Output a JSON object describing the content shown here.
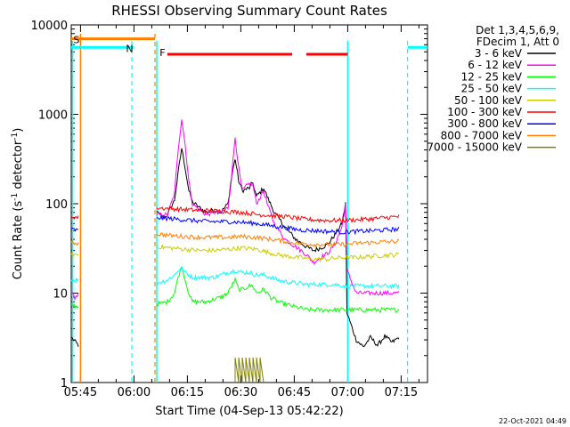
{
  "chart_data": {
    "type": "line",
    "title": "RHESSI Observing Summary Count Rates",
    "xlabel": "Start Time (04-Sep-13 05:42:22)",
    "ylabel_main": "Count Rate (s",
    "ylabel_sup1": "-1",
    "ylabel_mid": " detector",
    "ylabel_sup2": "-1",
    "ylabel_end": ")",
    "yscale": "log",
    "ylim": [
      1,
      10000
    ],
    "xlim_minutes": [
      0,
      100
    ],
    "x_ticks": [
      {
        "label": "05:45",
        "m": 2.6
      },
      {
        "label": "06:00",
        "m": 17.6
      },
      {
        "label": "06:15",
        "m": 32.6
      },
      {
        "label": "06:30",
        "m": 47.6
      },
      {
        "label": "06:45",
        "m": 62.6
      },
      {
        "label": "07:00",
        "m": 77.6
      },
      {
        "label": "07:15",
        "m": 92.6
      }
    ],
    "y_ticks": [
      {
        "label": "1",
        "v": 1
      },
      {
        "label": "10",
        "v": 10
      },
      {
        "label": "100",
        "v": 100
      },
      {
        "label": "1000",
        "v": 1000
      },
      {
        "label": "10000",
        "v": 10000
      }
    ],
    "legend_header": [
      "Det 1,3,4,5,6,9,",
      "FDecim 1, Att 0"
    ],
    "series": [
      {
        "name": "3 - 6 keV",
        "color": "#000000",
        "points": [
          [
            0,
            3.2
          ],
          [
            2,
            2.6
          ],
          [
            24,
            80
          ],
          [
            26,
            70
          ],
          [
            27,
            75
          ],
          [
            29,
            110
          ],
          [
            30,
            220
          ],
          [
            31,
            420
          ],
          [
            32,
            250
          ],
          [
            33,
            140
          ],
          [
            34,
            105
          ],
          [
            36,
            90
          ],
          [
            38,
            80
          ],
          [
            40,
            85
          ],
          [
            42,
            80
          ],
          [
            44,
            100
          ],
          [
            45,
            200
          ],
          [
            46,
            320
          ],
          [
            47,
            180
          ],
          [
            48,
            140
          ],
          [
            50,
            150
          ],
          [
            51,
            170
          ],
          [
            52,
            120
          ],
          [
            54,
            150
          ],
          [
            55,
            120
          ],
          [
            57,
            80
          ],
          [
            60,
            55
          ],
          [
            63,
            40
          ],
          [
            66,
            33
          ],
          [
            68,
            30
          ],
          [
            70,
            32
          ],
          [
            72,
            35
          ],
          [
            74,
            45
          ],
          [
            76,
            60
          ],
          [
            77,
            100
          ],
          [
            77.4,
            6
          ],
          [
            80,
            3
          ],
          [
            82,
            2.5
          ],
          [
            84,
            3.2
          ],
          [
            86,
            2.6
          ],
          [
            88,
            3.3
          ],
          [
            90,
            2.8
          ],
          [
            92,
            3.2
          ]
        ]
      },
      {
        "name": "6 - 12 keV",
        "color": "#ff00ff",
        "points": [
          [
            0,
            10
          ],
          [
            1,
            9
          ],
          [
            2,
            9.5
          ],
          [
            24,
            75
          ],
          [
            27,
            75
          ],
          [
            29,
            130
          ],
          [
            30,
            400
          ],
          [
            31,
            900
          ],
          [
            32,
            450
          ],
          [
            33,
            180
          ],
          [
            34,
            100
          ],
          [
            36,
            85
          ],
          [
            38,
            75
          ],
          [
            40,
            80
          ],
          [
            42,
            80
          ],
          [
            44,
            90
          ],
          [
            45,
            200
          ],
          [
            46,
            560
          ],
          [
            47,
            250
          ],
          [
            48,
            140
          ],
          [
            50,
            170
          ],
          [
            51,
            160
          ],
          [
            52,
            100
          ],
          [
            54,
            140
          ],
          [
            55,
            100
          ],
          [
            57,
            60
          ],
          [
            60,
            40
          ],
          [
            63,
            33
          ],
          [
            66,
            27
          ],
          [
            68,
            22
          ],
          [
            70,
            25
          ],
          [
            72,
            28
          ],
          [
            74,
            35
          ],
          [
            76,
            55
          ],
          [
            77,
            100
          ],
          [
            77.4,
            18
          ],
          [
            80,
            10
          ],
          [
            85,
            10
          ],
          [
            90,
            10
          ],
          [
            92,
            10
          ]
        ]
      },
      {
        "name": "12 - 25 keV",
        "color": "#00ff00",
        "points": [
          [
            0,
            7.5
          ],
          [
            2,
            7
          ],
          [
            24,
            7.5
          ],
          [
            27,
            8
          ],
          [
            29,
            10
          ],
          [
            30,
            15
          ],
          [
            31,
            20
          ],
          [
            32,
            14
          ],
          [
            33,
            10
          ],
          [
            34,
            8
          ],
          [
            36,
            8
          ],
          [
            38,
            8
          ],
          [
            40,
            8.5
          ],
          [
            42,
            9
          ],
          [
            44,
            10
          ],
          [
            45,
            12
          ],
          [
            46,
            14
          ],
          [
            47,
            11
          ],
          [
            48,
            11
          ],
          [
            50,
            12
          ],
          [
            51,
            12
          ],
          [
            52,
            10
          ],
          [
            54,
            11
          ],
          [
            56,
            9
          ],
          [
            58,
            8
          ],
          [
            60,
            7.5
          ],
          [
            63,
            7
          ],
          [
            66,
            6.5
          ],
          [
            70,
            6.5
          ],
          [
            74,
            6.5
          ],
          [
            77,
            6.5
          ],
          [
            80,
            6.5
          ],
          [
            85,
            6.5
          ],
          [
            92,
            6.5
          ]
        ]
      },
      {
        "name": "25 - 50 keV",
        "color": "#00ffff",
        "points": [
          [
            0,
            14
          ],
          [
            2,
            14
          ],
          [
            24,
            13
          ],
          [
            27,
            14
          ],
          [
            29,
            16
          ],
          [
            30,
            18
          ],
          [
            31,
            19
          ],
          [
            32,
            17
          ],
          [
            34,
            15
          ],
          [
            36,
            15
          ],
          [
            38,
            15
          ],
          [
            40,
            15
          ],
          [
            42,
            16
          ],
          [
            44,
            17
          ],
          [
            46,
            18
          ],
          [
            48,
            17
          ],
          [
            50,
            17
          ],
          [
            52,
            16
          ],
          [
            54,
            16
          ],
          [
            56,
            15
          ],
          [
            58,
            14
          ],
          [
            60,
            13.5
          ],
          [
            63,
            13
          ],
          [
            66,
            12.5
          ],
          [
            70,
            12.5
          ],
          [
            74,
            12.5
          ],
          [
            77,
            12
          ],
          [
            80,
            12
          ],
          [
            85,
            12
          ],
          [
            92,
            12
          ]
        ]
      },
      {
        "name": "50 - 100 keV",
        "color": "#cccc00",
        "points": [
          [
            0,
            27
          ],
          [
            2,
            27
          ],
          [
            24,
            33
          ],
          [
            28,
            32
          ],
          [
            32,
            31
          ],
          [
            36,
            30
          ],
          [
            40,
            30
          ],
          [
            44,
            31
          ],
          [
            48,
            32
          ],
          [
            52,
            31
          ],
          [
            56,
            28
          ],
          [
            60,
            26
          ],
          [
            64,
            25
          ],
          [
            68,
            24
          ],
          [
            72,
            24
          ],
          [
            76,
            25
          ],
          [
            80,
            25
          ],
          [
            85,
            26
          ],
          [
            92,
            27
          ]
        ]
      },
      {
        "name": "100 - 300 keV",
        "color": "#ff0000",
        "points": [
          [
            0,
            72
          ],
          [
            2,
            70
          ],
          [
            24,
            90
          ],
          [
            28,
            88
          ],
          [
            32,
            86
          ],
          [
            36,
            84
          ],
          [
            40,
            83
          ],
          [
            44,
            82
          ],
          [
            48,
            80
          ],
          [
            52,
            76
          ],
          [
            56,
            74
          ],
          [
            60,
            72
          ],
          [
            64,
            68
          ],
          [
            68,
            66
          ],
          [
            72,
            65
          ],
          [
            76,
            65
          ],
          [
            80,
            66
          ],
          [
            85,
            68
          ],
          [
            92,
            72
          ]
        ]
      },
      {
        "name": "300 - 800 keV",
        "color": "#0000ff",
        "points": [
          [
            0,
            52
          ],
          [
            2,
            50
          ],
          [
            24,
            70
          ],
          [
            28,
            68
          ],
          [
            32,
            66
          ],
          [
            36,
            64
          ],
          [
            40,
            63
          ],
          [
            44,
            63
          ],
          [
            48,
            62
          ],
          [
            52,
            60
          ],
          [
            56,
            57
          ],
          [
            60,
            54
          ],
          [
            64,
            51
          ],
          [
            68,
            50
          ],
          [
            72,
            49
          ],
          [
            76,
            48
          ],
          [
            80,
            49
          ],
          [
            85,
            50
          ],
          [
            92,
            52
          ]
        ]
      },
      {
        "name": "800 - 7000 keV",
        "color": "#ff8000",
        "points": [
          [
            0,
            37
          ],
          [
            2,
            36
          ],
          [
            24,
            46
          ],
          [
            28,
            44
          ],
          [
            32,
            43
          ],
          [
            36,
            42
          ],
          [
            40,
            42
          ],
          [
            44,
            42
          ],
          [
            48,
            43
          ],
          [
            52,
            42
          ],
          [
            56,
            40
          ],
          [
            60,
            38
          ],
          [
            64,
            36
          ],
          [
            68,
            35
          ],
          [
            72,
            35
          ],
          [
            76,
            35
          ],
          [
            80,
            36
          ],
          [
            85,
            37
          ],
          [
            92,
            38
          ]
        ]
      },
      {
        "name": "7000 - 15000 keV",
        "color": "#808000",
        "points": [
          [
            46,
            1
          ],
          [
            46,
            1.9
          ],
          [
            47,
            1
          ],
          [
            47,
            1.9
          ],
          [
            48,
            1
          ],
          [
            48,
            1.9
          ],
          [
            49,
            1
          ],
          [
            49,
            1.9
          ],
          [
            50,
            1
          ],
          [
            50,
            1.9
          ],
          [
            51,
            1
          ],
          [
            51,
            1.9
          ],
          [
            52,
            1
          ],
          [
            52,
            1.9
          ],
          [
            53,
            1
          ],
          [
            53,
            1.9
          ],
          [
            54,
            1
          ]
        ]
      }
    ],
    "annotations": {
      "S_label": "S",
      "N_label": "N",
      "F_label": "F",
      "saa_orange_range_m": [
        0,
        23.5
      ],
      "night_cyan_ranges_m": [
        [
          0,
          17.6
        ],
        [
          94.5,
          100
        ]
      ],
      "flare_red_ranges_m": [
        [
          27,
          62
        ],
        [
          66,
          77.6
        ]
      ],
      "vline_orange_solid_m": [
        2.6
      ],
      "vline_orange_dash_m": [
        23.5
      ],
      "vline_cyan_solid_m": [
        0.4,
        24.0,
        77.6
      ],
      "vline_cyan_dash_m": [
        17.0,
        94.4
      ],
      "bar_levels": {
        "orange": 7000,
        "cyan": 5600,
        "red": 4700
      }
    }
  },
  "footer": {
    "timestamp": "22-Oct-2021 04:49"
  }
}
